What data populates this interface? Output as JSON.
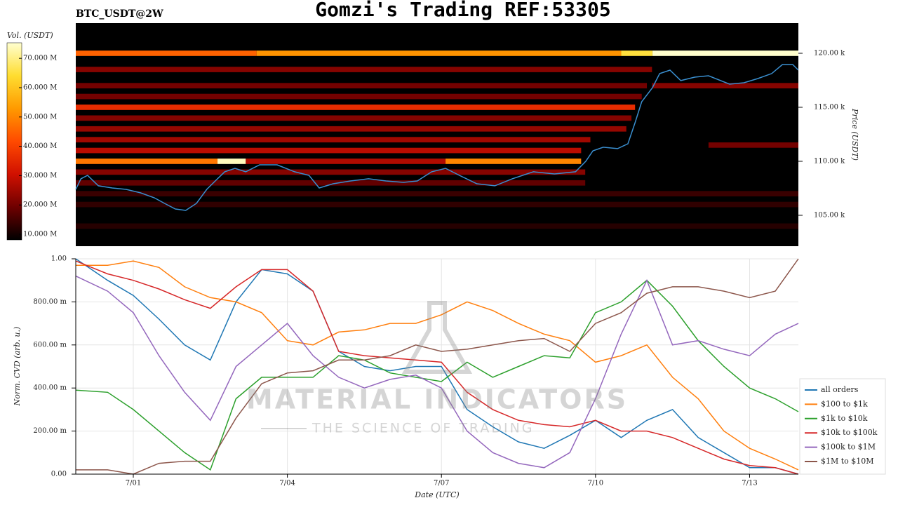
{
  "title": "Gomzi's Trading REF:53305",
  "watermark": {
    "title": "MATERIAL INDICATORS",
    "subtitle": "THE SCIENCE OF TRADING"
  },
  "chart_data": [
    {
      "type": "heatmap",
      "title": "BTC_USDT@2W",
      "ylabel": "Price (USDT)",
      "colorbar_label": "Vol. (USDT)",
      "xlim": [
        -0.12,
        13.95
      ],
      "ylim": [
        102140,
        122790
      ],
      "yticks": [
        {
          "value": 105000,
          "label": "105.00 k"
        },
        {
          "value": 110000,
          "label": "110.00 k"
        },
        {
          "value": 115000,
          "label": "115.00 k"
        },
        {
          "value": 120000,
          "label": "120.00 k"
        }
      ],
      "clim": [
        8100000,
        75300000
      ],
      "cticks": [
        {
          "value": 10000000,
          "label": "10.000 M"
        },
        {
          "value": 20000000,
          "label": "20.000 M"
        },
        {
          "value": 30000000,
          "label": "30.000 M"
        },
        {
          "value": 40000000,
          "label": "40.000 M"
        },
        {
          "value": 50000000,
          "label": "50.000 M"
        },
        {
          "value": 60000000,
          "label": "60.000 M"
        },
        {
          "value": 70000000,
          "label": "70.000 M"
        }
      ],
      "colormap": [
        "#000000",
        "#6e0000",
        "#d01000",
        "#ff4a00",
        "#ff9a00",
        "#ffdd30",
        "#ffffd0"
      ],
      "row_height": 500,
      "walls": [
        {
          "price": 120000,
          "x": [
            -0.12,
            3.4
          ],
          "volume": 45000000
        },
        {
          "price": 120000,
          "x": [
            3.4,
            10.5
          ],
          "volume": 52000000
        },
        {
          "price": 120000,
          "x": [
            10.5,
            11.11
          ],
          "volume": 65000000
        },
        {
          "price": 120000,
          "x": [
            11.11,
            13.95
          ],
          "volume": 75000000
        },
        {
          "price": 118500,
          "x": [
            -0.12,
            11.1
          ],
          "volume": 22000000
        },
        {
          "price": 117000,
          "x": [
            -0.12,
            11.0
          ],
          "volume": 20000000
        },
        {
          "price": 117000,
          "x": [
            11.1,
            13.95
          ],
          "volume": 22000000
        },
        {
          "price": 116000,
          "x": [
            -0.12,
            10.9
          ],
          "volume": 20000000
        },
        {
          "price": 115000,
          "x": [
            -0.12,
            10.77
          ],
          "volume": 36000000
        },
        {
          "price": 114000,
          "x": [
            -0.12,
            10.7
          ],
          "volume": 22000000
        },
        {
          "price": 113000,
          "x": [
            -0.12,
            10.6
          ],
          "volume": 24000000
        },
        {
          "price": 112000,
          "x": [
            -0.12,
            9.9
          ],
          "volume": 25000000
        },
        {
          "price": 111500,
          "x": [
            12.2,
            13.95
          ],
          "volume": 20000000
        },
        {
          "price": 111000,
          "x": [
            -0.12,
            9.72
          ],
          "volume": 28000000
        },
        {
          "price": 110000,
          "x": [
            -0.12,
            2.64
          ],
          "volume": 48000000
        },
        {
          "price": 110000,
          "x": [
            2.64,
            3.19
          ],
          "volume": 74000000
        },
        {
          "price": 110000,
          "x": [
            3.19,
            7.08
          ],
          "volume": 27000000
        },
        {
          "price": 110000,
          "x": [
            7.08,
            9.72
          ],
          "volume": 50000000
        },
        {
          "price": 109000,
          "x": [
            -0.12,
            9.8
          ],
          "volume": 22000000
        },
        {
          "price": 108000,
          "x": [
            -0.12,
            9.8
          ],
          "volume": 18000000
        },
        {
          "price": 107000,
          "x": [
            -0.12,
            13.95
          ],
          "volume": 14000000
        },
        {
          "price": 106000,
          "x": [
            -0.12,
            13.95
          ],
          "volume": 13000000
        },
        {
          "price": 104000,
          "x": [
            -0.12,
            13.95
          ],
          "volume": 12000000
        }
      ],
      "line": {
        "color": "#3a8fd0",
        "x": [
          -0.12,
          -0.02,
          0.11,
          0.32,
          0.59,
          0.86,
          1.14,
          1.41,
          1.61,
          1.82,
          2.02,
          2.23,
          2.43,
          2.64,
          2.78,
          2.98,
          3.19,
          3.46,
          3.8,
          4.14,
          4.42,
          4.62,
          4.89,
          5.23,
          5.58,
          5.92,
          6.26,
          6.53,
          6.81,
          7.08,
          7.35,
          7.69,
          8.04,
          8.38,
          8.79,
          9.2,
          9.61,
          9.81,
          9.95,
          10.15,
          10.43,
          10.63,
          10.77,
          10.9,
          11.11,
          11.25,
          11.45,
          11.66,
          11.93,
          12.2,
          12.61,
          12.89,
          13.16,
          13.43,
          13.64,
          13.84,
          13.95
        ],
        "values": [
          107400,
          108380,
          108700,
          107730,
          107530,
          107400,
          107080,
          106620,
          106100,
          105580,
          105450,
          106100,
          107400,
          108380,
          109030,
          109350,
          109030,
          109670,
          109670,
          109030,
          108700,
          107530,
          107920,
          108180,
          108380,
          108180,
          108050,
          108180,
          109030,
          109350,
          108700,
          107920,
          107730,
          108380,
          109030,
          108830,
          109030,
          110000,
          110970,
          111300,
          111170,
          111620,
          113570,
          115520,
          116820,
          118120,
          118440,
          117470,
          117790,
          117920,
          117140,
          117270,
          117660,
          118120,
          118960,
          118960,
          118440
        ]
      }
    },
    {
      "type": "line",
      "xlabel": "Date (UTC)",
      "ylabel": "Norm. CVD (arb. u.)",
      "grid": true,
      "legend": "right",
      "xlim": [
        -0.12,
        13.95
      ],
      "ylim": [
        0,
        1
      ],
      "xticks": [
        {
          "value": 1,
          "label": "7/01"
        },
        {
          "value": 4,
          "label": "7/04"
        },
        {
          "value": 7,
          "label": "7/07"
        },
        {
          "value": 10,
          "label": "7/10"
        },
        {
          "value": 13,
          "label": "7/13"
        }
      ],
      "yticks": [
        {
          "value": 0,
          "label": "0.00"
        },
        {
          "value": 0.2,
          "label": "200.00 m"
        },
        {
          "value": 0.4,
          "label": "400.00 m"
        },
        {
          "value": 0.6,
          "label": "600.00 m"
        },
        {
          "value": 0.8,
          "label": "800.00 m"
        },
        {
          "value": 1,
          "label": "1.00"
        }
      ],
      "x": [
        -0.12,
        0.5,
        1,
        1.5,
        2,
        2.5,
        3,
        3.5,
        4,
        4.5,
        5,
        5.5,
        6,
        6.5,
        7,
        7.5,
        8,
        8.5,
        9,
        9.5,
        10,
        10.5,
        11,
        11.5,
        12,
        12.5,
        13,
        13.5,
        13.95
      ],
      "series": [
        {
          "name": "all orders",
          "color": "#1f77b4",
          "values": [
            1.0,
            0.9,
            0.83,
            0.72,
            0.6,
            0.53,
            0.8,
            0.95,
            0.93,
            0.85,
            0.57,
            0.5,
            0.48,
            0.5,
            0.5,
            0.3,
            0.22,
            0.15,
            0.12,
            0.18,
            0.25,
            0.17,
            0.25,
            0.3,
            0.17,
            0.1,
            0.03,
            0.03,
            0.0
          ]
        },
        {
          "name": "$100 to $1k",
          "color": "#ff7f0e",
          "values": [
            0.97,
            0.97,
            0.99,
            0.96,
            0.87,
            0.82,
            0.8,
            0.75,
            0.62,
            0.6,
            0.66,
            0.67,
            0.7,
            0.7,
            0.74,
            0.8,
            0.76,
            0.7,
            0.65,
            0.62,
            0.52,
            0.55,
            0.6,
            0.45,
            0.35,
            0.2,
            0.12,
            0.07,
            0.02
          ]
        },
        {
          "name": "$1k to $10k",
          "color": "#2ca02c",
          "values": [
            0.39,
            0.38,
            0.3,
            0.2,
            0.1,
            0.02,
            0.35,
            0.45,
            0.45,
            0.45,
            0.55,
            0.53,
            0.47,
            0.45,
            0.43,
            0.52,
            0.45,
            0.5,
            0.55,
            0.54,
            0.75,
            0.8,
            0.9,
            0.78,
            0.62,
            0.5,
            0.4,
            0.35,
            0.29
          ]
        },
        {
          "name": "$10k to $100k",
          "color": "#d62728",
          "values": [
            0.99,
            0.93,
            0.9,
            0.86,
            0.81,
            0.77,
            0.87,
            0.95,
            0.95,
            0.85,
            0.57,
            0.55,
            0.54,
            0.53,
            0.52,
            0.38,
            0.3,
            0.25,
            0.23,
            0.22,
            0.25,
            0.2,
            0.2,
            0.17,
            0.12,
            0.07,
            0.04,
            0.03,
            0.0
          ]
        },
        {
          "name": "$100k to $1M",
          "color": "#9467bd",
          "values": [
            0.92,
            0.85,
            0.75,
            0.55,
            0.38,
            0.25,
            0.5,
            0.6,
            0.7,
            0.55,
            0.45,
            0.4,
            0.44,
            0.46,
            0.4,
            0.2,
            0.1,
            0.05,
            0.03,
            0.1,
            0.35,
            0.65,
            0.9,
            0.6,
            0.62,
            0.58,
            0.55,
            0.65,
            0.7
          ]
        },
        {
          "name": "$1M to $10M",
          "color": "#8c564b",
          "values": [
            0.02,
            0.02,
            0.0,
            0.05,
            0.06,
            0.06,
            0.26,
            0.42,
            0.47,
            0.48,
            0.53,
            0.53,
            0.55,
            0.6,
            0.57,
            0.58,
            0.6,
            0.62,
            0.63,
            0.57,
            0.7,
            0.75,
            0.84,
            0.87,
            0.87,
            0.85,
            0.82,
            0.85,
            1.0
          ]
        }
      ]
    }
  ]
}
